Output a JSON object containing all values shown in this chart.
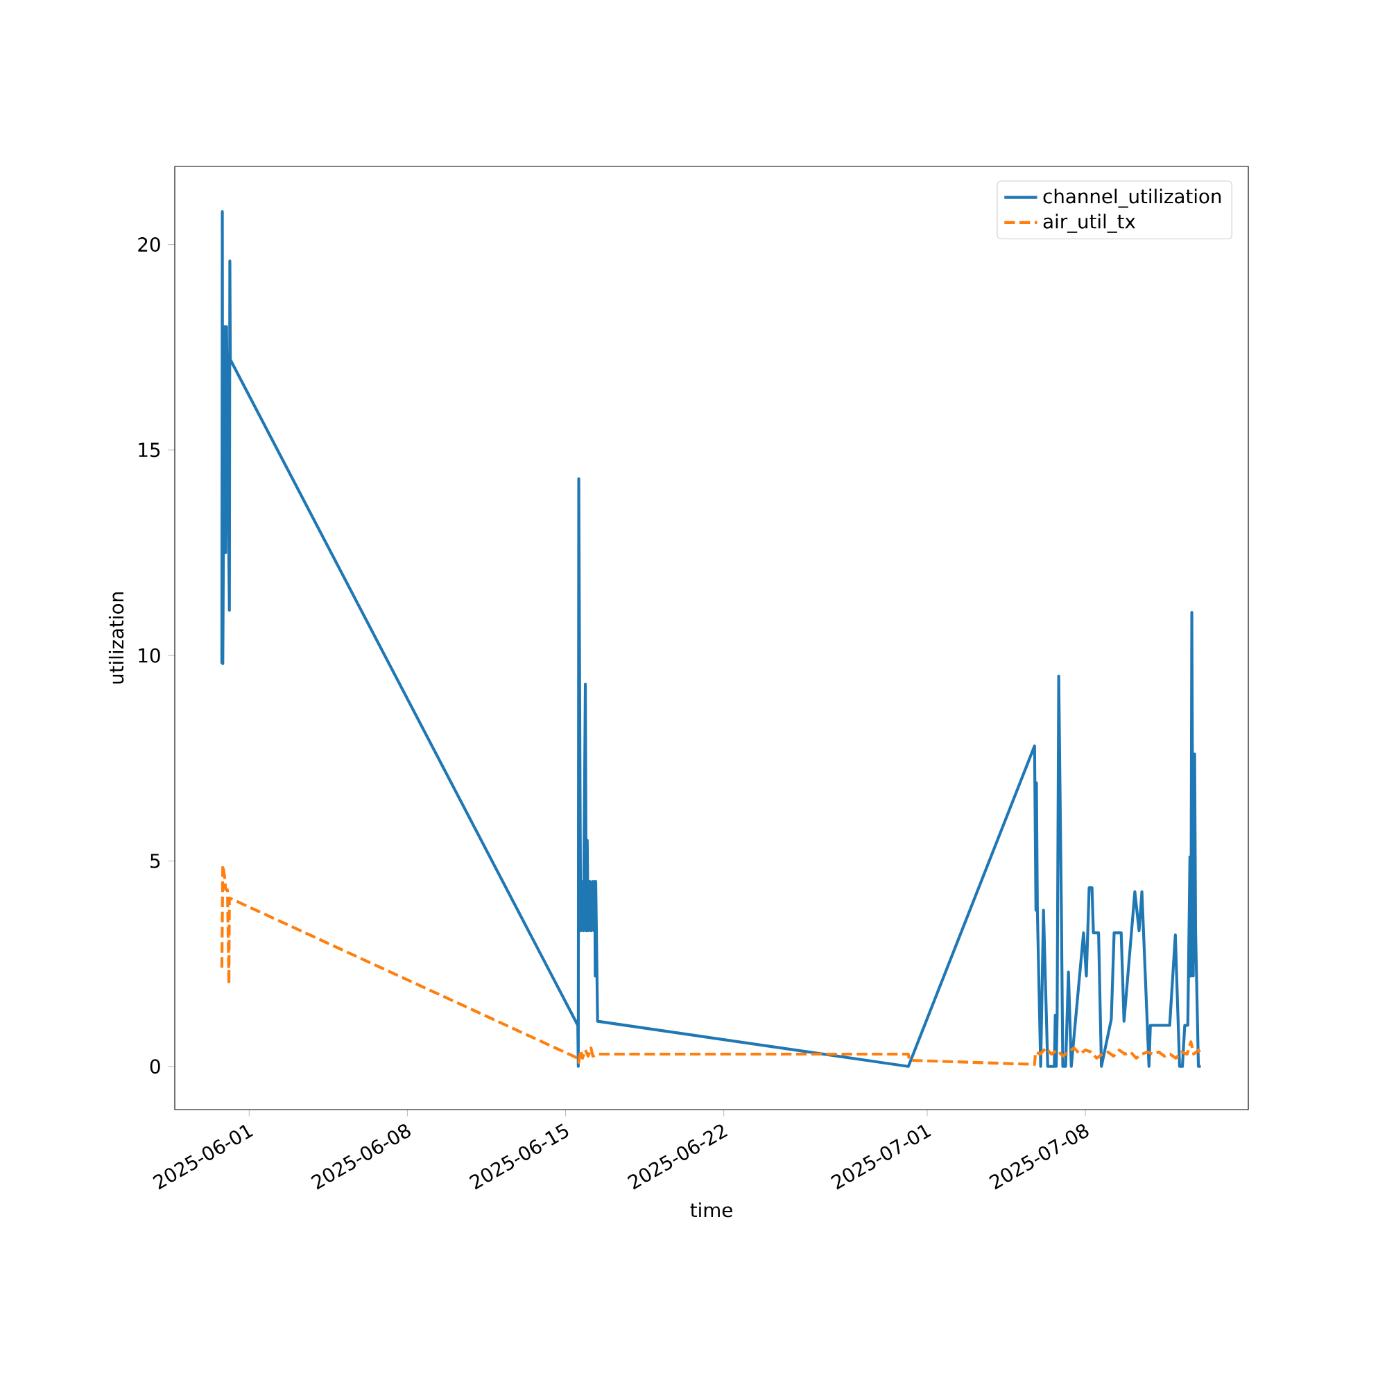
{
  "chart_data": {
    "type": "line",
    "xlabel": "time",
    "ylabel": "utilization",
    "xlim": [
      "2025-05-28T17:00",
      "2025-07-15T05:00"
    ],
    "ylim": [
      -1.05,
      21.9
    ],
    "xticks": [
      "2025-06-01",
      "2025-06-08",
      "2025-06-15",
      "2025-06-22",
      "2025-07-01",
      "2025-07-08"
    ],
    "yticks": [
      0,
      5,
      10,
      15,
      20
    ],
    "legend": "top right",
    "series": [
      {
        "name": "channel_utilization",
        "color": "#1f77b4",
        "line_style": "solid",
        "x": [
          "2025-05-30T19:00",
          "2025-05-30T19:30",
          "2025-05-30T20:00",
          "2025-05-30T22:00",
          "2025-05-30T23:00",
          "2025-05-31T00:00",
          "2025-05-31T03:00",
          "2025-05-31T03:30",
          "2025-05-31T04:00",
          "2025-06-15T13:00",
          "2025-06-15T13:30",
          "2025-06-15T14:00",
          "2025-06-15T16:00",
          "2025-06-15T18:00",
          "2025-06-15T19:00",
          "2025-06-15T21:00",
          "2025-06-15T22:00",
          "2025-06-15T23:00",
          "2025-06-16T00:00",
          "2025-06-16T02:00",
          "2025-06-16T03:00",
          "2025-06-16T05:00",
          "2025-06-16T06:00",
          "2025-06-16T07:00",
          "2025-06-16T07:30",
          "2025-06-16T08:00",
          "2025-06-16T10:00",
          "2025-06-30T04:00",
          "2025-07-05T18:00",
          "2025-07-05T19:30",
          "2025-07-05T20:00",
          "2025-07-05T21:00",
          "2025-07-06T00:30",
          "2025-07-06T03:30",
          "2025-07-06T08:00",
          "2025-07-06T15:00",
          "2025-07-06T16:00",
          "2025-07-06T17:00",
          "2025-07-06T18:00",
          "2025-07-06T19:40",
          "2025-07-06T22:30",
          "2025-07-07T00:00",
          "2025-07-07T03:00",
          "2025-07-07T06:00",
          "2025-07-07T09:00",
          "2025-07-07T22:00",
          "2025-07-08T01:00",
          "2025-07-08T04:00",
          "2025-07-08T07:00",
          "2025-07-08T08:30",
          "2025-07-08T14:00",
          "2025-07-08T17:00",
          "2025-07-09T03:30",
          "2025-07-09T06:30",
          "2025-07-09T14:00",
          "2025-07-09T17:00",
          "2025-07-10T04:30",
          "2025-07-10T09:00",
          "2025-07-10T12:00",
          "2025-07-10T19:30",
          "2025-07-10T21:00",
          "2025-07-11T17:30",
          "2025-07-11T23:30",
          "2025-07-12T04:00",
          "2025-07-12T07:00",
          "2025-07-12T09:30",
          "2025-07-12T12:45",
          "2025-07-12T15:00",
          "2025-07-12T16:00",
          "2025-07-12T17:00",
          "2025-07-12T18:30",
          "2025-07-12T20:00",
          "2025-07-12T21:00",
          "2025-07-13T00:00",
          "2025-07-13T02:30"
        ],
        "values": [
          9.8,
          20.8,
          9.8,
          18.0,
          12.5,
          18.0,
          11.1,
          19.6,
          17.2,
          1.0,
          0.0,
          14.3,
          3.3,
          4.5,
          3.3,
          9.3,
          3.3,
          5.5,
          3.3,
          4.5,
          3.3,
          4.5,
          3.3,
          4.5,
          2.2,
          4.5,
          1.1,
          0.0,
          7.8,
          3.8,
          6.9,
          3.8,
          0.0,
          3.8,
          0.0,
          0.0,
          1.25,
          0.0,
          1.25,
          9.5,
          3.8,
          0.0,
          0.0,
          2.3,
          0.0,
          3.25,
          2.2,
          4.35,
          4.35,
          3.25,
          3.25,
          0.0,
          1.15,
          3.25,
          3.25,
          1.1,
          4.25,
          3.3,
          4.25,
          0.0,
          1.0,
          1.0,
          3.2,
          0.0,
          0.0,
          1.0,
          1.0,
          5.1,
          2.2,
          11.05,
          2.2,
          7.6,
          3.3,
          0.0,
          0.0
        ]
      },
      {
        "name": "air_util_tx",
        "color": "#ff7f0e",
        "line_style": "dashed",
        "x": [
          "2025-05-30T19:00",
          "2025-05-30T20:00",
          "2025-05-30T22:00",
          "2025-05-30T23:00",
          "2025-05-31T01:00",
          "2025-05-31T02:30",
          "2025-05-31T03:00",
          "2025-06-15T13:00",
          "2025-06-15T14:00",
          "2025-06-15T16:00",
          "2025-06-15T18:00",
          "2025-06-15T21:00",
          "2025-06-16T00:00",
          "2025-06-16T03:00",
          "2025-06-16T05:00",
          "2025-06-16T10:00",
          "2025-06-30T04:00",
          "2025-06-30T05:00",
          "2025-07-05T18:00",
          "2025-07-05T19:00",
          "2025-07-06T00:00",
          "2025-07-06T06:00",
          "2025-07-06T12:00",
          "2025-07-06T18:00",
          "2025-07-07T00:00",
          "2025-07-07T06:00",
          "2025-07-07T12:00",
          "2025-07-07T18:00",
          "2025-07-08T00:00",
          "2025-07-08T06:00",
          "2025-07-08T12:00",
          "2025-07-08T18:00",
          "2025-07-09T00:00",
          "2025-07-09T06:00",
          "2025-07-09T12:00",
          "2025-07-09T18:00",
          "2025-07-10T00:00",
          "2025-07-10T06:00",
          "2025-07-10T12:00",
          "2025-07-10T18:00",
          "2025-07-11T00:00",
          "2025-07-11T06:00",
          "2025-07-11T12:00",
          "2025-07-11T18:00",
          "2025-07-12T00:00",
          "2025-07-12T06:00",
          "2025-07-12T12:00",
          "2025-07-12T16:00",
          "2025-07-12T19:00",
          "2025-07-13T00:00",
          "2025-07-13T02:30"
        ],
        "values": [
          2.4,
          4.9,
          4.6,
          4.3,
          4.3,
          2.0,
          4.1,
          0.2,
          0.1,
          0.4,
          0.2,
          0.4,
          0.25,
          0.45,
          0.25,
          0.3,
          0.3,
          0.15,
          0.05,
          0.35,
          0.3,
          0.45,
          0.3,
          0.4,
          0.25,
          0.35,
          0.45,
          0.3,
          0.4,
          0.35,
          0.2,
          0.3,
          0.35,
          0.25,
          0.4,
          0.3,
          0.35,
          0.2,
          0.3,
          0.35,
          0.3,
          0.35,
          0.25,
          0.3,
          0.2,
          0.35,
          0.3,
          0.6,
          0.3,
          0.4,
          0.3
        ]
      }
    ]
  }
}
